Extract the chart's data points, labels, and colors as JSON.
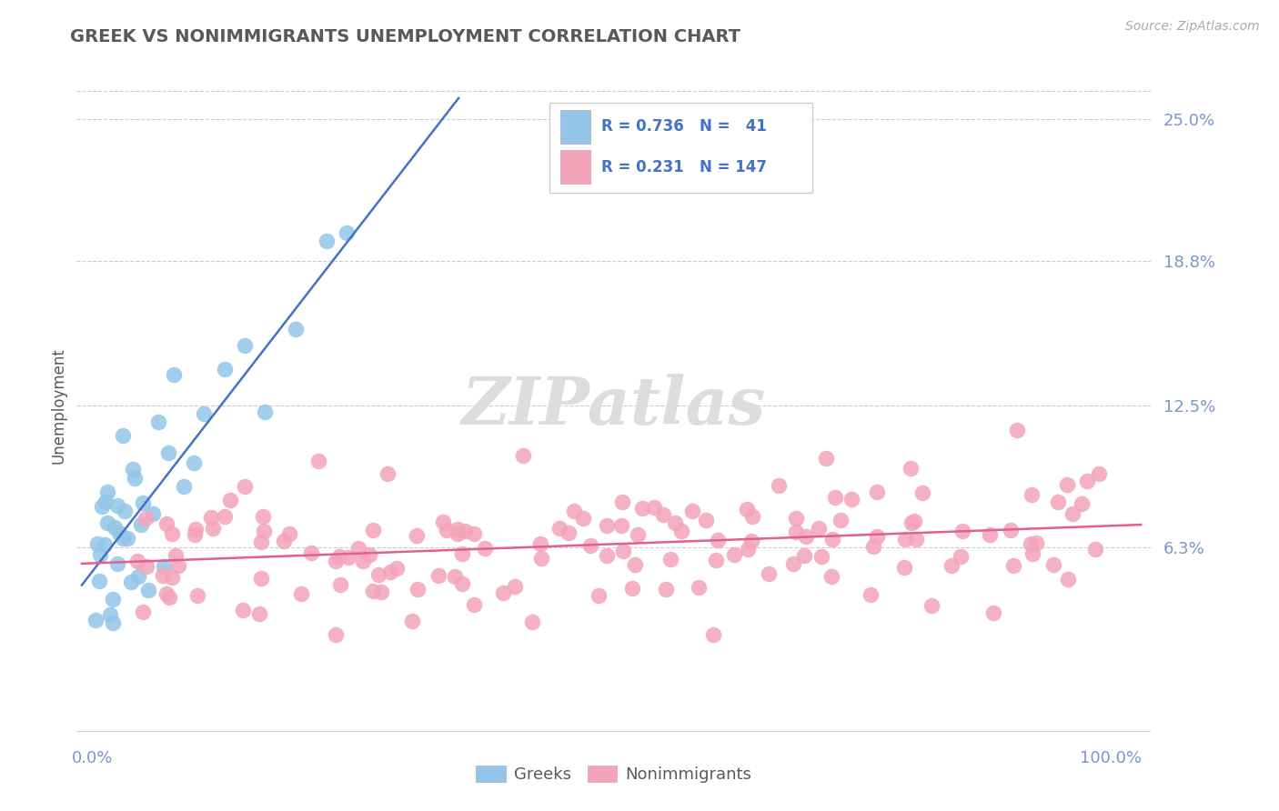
{
  "title": "GREEK VS NONIMMIGRANTS UNEMPLOYMENT CORRELATION CHART",
  "source": "Source: ZipAtlas.com",
  "ylabel": "Unemployment",
  "yticks": [
    0.063,
    0.125,
    0.188,
    0.25
  ],
  "ytick_labels": [
    "6.3%",
    "12.5%",
    "18.8%",
    "25.0%"
  ],
  "xlim": [
    -0.015,
    1.04
  ],
  "ylim": [
    -0.02,
    0.27
  ],
  "legend_line1": "R = 0.736   N =   41",
  "legend_line2": "R = 0.231   N = 147",
  "greek_color": "#92C5E8",
  "nonimmigrant_color": "#F4A4BA",
  "greek_line_color": "#4472C4",
  "nonimmigrant_line_color": "#E06090",
  "title_color": "#595959",
  "axis_label_color": "#7B96CB",
  "source_color": "#AAAAAA",
  "watermark": "ZIPatlas",
  "background_color": "#FFFFFF",
  "watermark_color": "#DDDDDD",
  "ylabel_color": "#595959",
  "legend_text_color": "#4472C4",
  "legend_r_black_color": "#333333"
}
